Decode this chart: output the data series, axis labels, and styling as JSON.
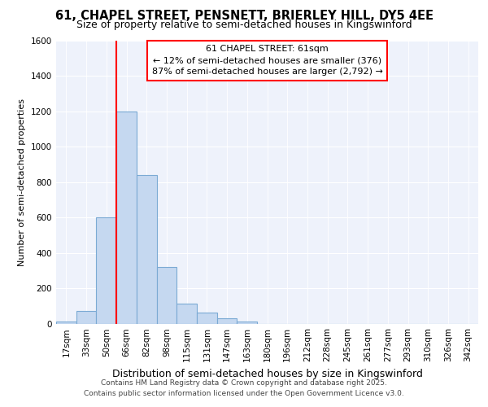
{
  "title": "61, CHAPEL STREET, PENSNETT, BRIERLEY HILL, DY5 4EE",
  "subtitle": "Size of property relative to semi-detached houses in Kingswinford",
  "xlabel": "Distribution of semi-detached houses by size in Kingswinford",
  "ylabel": "Number of semi-detached properties",
  "categories": [
    "17sqm",
    "33sqm",
    "50sqm",
    "66sqm",
    "82sqm",
    "98sqm",
    "115sqm",
    "131sqm",
    "147sqm",
    "163sqm",
    "180sqm",
    "196sqm",
    "212sqm",
    "228sqm",
    "245sqm",
    "261sqm",
    "277sqm",
    "293sqm",
    "310sqm",
    "326sqm",
    "342sqm"
  ],
  "values": [
    10,
    70,
    600,
    1200,
    840,
    320,
    115,
    60,
    30,
    10,
    0,
    0,
    0,
    0,
    0,
    0,
    0,
    0,
    0,
    0,
    0
  ],
  "bar_color": "#c5d8f0",
  "bar_edge_color": "#7baad4",
  "vline_x_index": 3,
  "vline_color": "red",
  "annotation_title": "61 CHAPEL STREET: 61sqm",
  "annotation_line1": "← 12% of semi-detached houses are smaller (376)",
  "annotation_line2": "87% of semi-detached houses are larger (2,792) →",
  "ylim": [
    0,
    1600
  ],
  "yticks": [
    0,
    200,
    400,
    600,
    800,
    1000,
    1200,
    1400,
    1600
  ],
  "plot_bg_color": "#eef2fb",
  "grid_color": "#ffffff",
  "footer_line1": "Contains HM Land Registry data © Crown copyright and database right 2025.",
  "footer_line2": "Contains public sector information licensed under the Open Government Licence v3.0.",
  "title_fontsize": 10.5,
  "subtitle_fontsize": 9,
  "xlabel_fontsize": 9,
  "ylabel_fontsize": 8,
  "tick_fontsize": 7.5,
  "annotation_fontsize": 8,
  "footer_fontsize": 6.5
}
